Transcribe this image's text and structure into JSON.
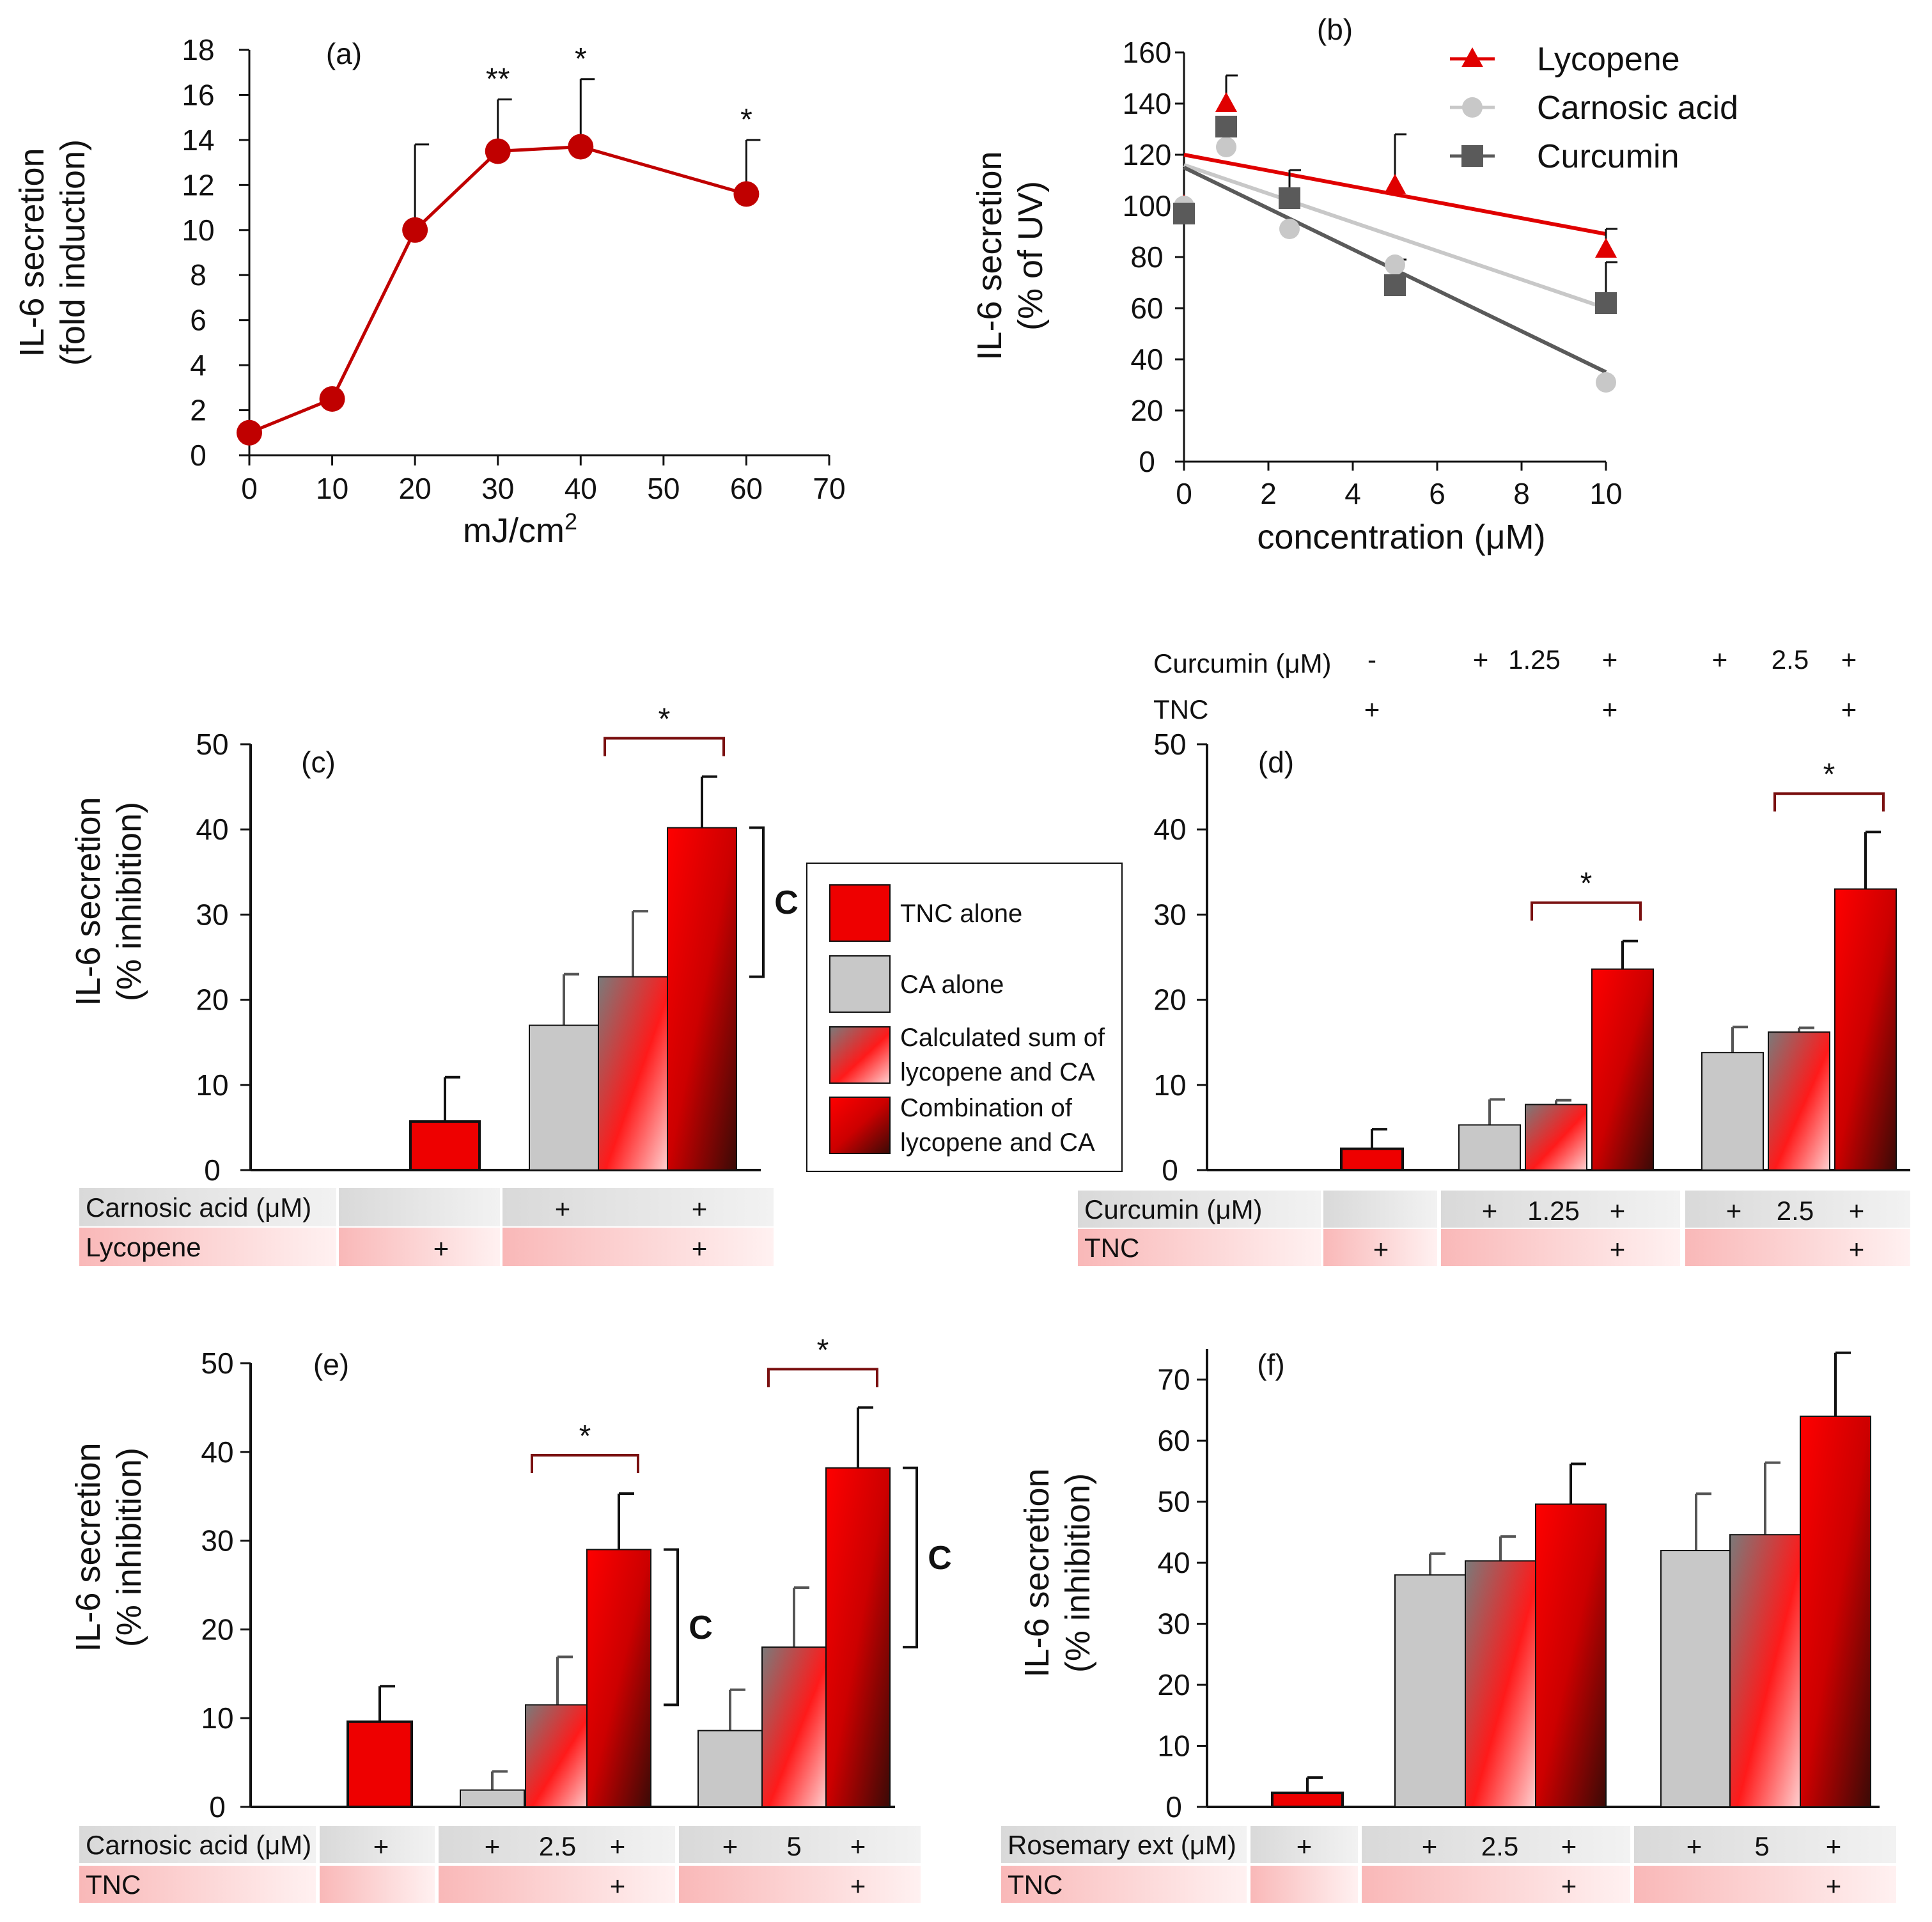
{
  "chart_data": [
    {
      "id": "a",
      "type": "line",
      "panel_label": "(a)",
      "xlabel": "mJ/cm",
      "xlabel_sup": "2",
      "ylabel_line1": "IL-6 secretion",
      "ylabel_line2": "(fold induction)",
      "xlim": [
        0,
        70
      ],
      "ylim": [
        0,
        18
      ],
      "xticks": [
        0,
        10,
        20,
        30,
        40,
        50,
        60,
        70
      ],
      "yticks": [
        0,
        2,
        4,
        6,
        8,
        10,
        12,
        14,
        16,
        18
      ],
      "color": "#c00000",
      "x": [
        0,
        10,
        20,
        30,
        40,
        60
      ],
      "y": [
        1,
        2.5,
        10,
        13.5,
        13.7,
        11.6
      ],
      "err": [
        0,
        0,
        3.8,
        2.3,
        3.0,
        2.4
      ],
      "annotations": [
        "",
        "",
        "",
        "**",
        "*",
        "*"
      ]
    },
    {
      "id": "b",
      "type": "scatter",
      "panel_label": "(b)",
      "xlabel": "concentration (μM)",
      "ylabel_line1": "IL-6 secretion",
      "ylabel_line2": "(% of UV)",
      "xlim": [
        0,
        10
      ],
      "ylim": [
        0,
        160
      ],
      "xticks": [
        0,
        2,
        4,
        6,
        8,
        10
      ],
      "yticks": [
        0,
        20,
        40,
        60,
        80,
        100,
        120,
        140,
        160
      ],
      "series": [
        {
          "name": "Lycopene",
          "marker": "triangle",
          "color": "#e00000",
          "x": [
            0,
            1,
            2.5,
            5,
            10
          ],
          "y": [
            100,
            140,
            102,
            108,
            83
          ],
          "err": [
            0,
            11,
            0,
            20,
            8
          ],
          "fit": [
            [
              0,
              120
            ],
            [
              10,
              89
            ]
          ]
        },
        {
          "name": "Carnosic acid",
          "marker": "circle",
          "color": "#c8c8c8",
          "x": [
            0,
            1,
            2.5,
            5,
            10
          ],
          "y": [
            100,
            123,
            91,
            77,
            31
          ],
          "err": [
            0,
            0,
            0,
            0,
            0
          ],
          "fit": [
            [
              0,
              116
            ],
            [
              10,
              60
            ]
          ]
        },
        {
          "name": "Curcumin",
          "marker": "square",
          "color": "#5a5a5a",
          "x": [
            0,
            1,
            2.5,
            5,
            10
          ],
          "y": [
            97,
            131,
            103,
            69,
            62
          ],
          "err": [
            0,
            0,
            11,
            10,
            16
          ],
          "fit": [
            [
              0,
              115
            ],
            [
              10,
              35
            ]
          ]
        }
      ]
    },
    {
      "id": "c",
      "type": "bar",
      "panel_label": "(c)",
      "ylabel_line1": "IL-6 secretion",
      "ylabel_line2": "(% inhibition)",
      "ylim": [
        0,
        50
      ],
      "yticks": [
        0,
        10,
        20,
        30,
        40,
        50
      ],
      "bars": [
        {
          "kind": "tnc",
          "value": 5.7,
          "err": 5.2
        },
        {
          "kind": "ca",
          "value": 17,
          "err": 6
        },
        {
          "kind": "sum",
          "value": 22.7,
          "err": 7.7
        },
        {
          "kind": "combo",
          "value": 40.2,
          "err": 6
        }
      ],
      "significance": [
        {
          "from": 2,
          "to": 3,
          "label": "*"
        }
      ],
      "bracket_c": [
        {
          "bar": 3,
          "label": "C"
        }
      ],
      "table": {
        "row1_label": "Carnosic acid (μM)",
        "row1": [
          "",
          "+",
          "+"
        ],
        "row2_label": "Lycopene",
        "row2": [
          "+",
          "",
          "+"
        ]
      }
    },
    {
      "id": "d",
      "type": "bar",
      "panel_label": "(d)",
      "ylim": [
        0,
        50
      ],
      "yticks": [
        0,
        10,
        20,
        30,
        40,
        50
      ],
      "bars": [
        {
          "kind": "tnc",
          "value": 2.5,
          "err": 2.3
        },
        {
          "kind": "ca",
          "value": 5.3,
          "err": 3
        },
        {
          "kind": "sum",
          "value": 7.7,
          "err": 0.5
        },
        {
          "kind": "combo",
          "value": 23.6,
          "err": 3.3
        },
        {
          "kind": "ca",
          "value": 13.8,
          "err": 3
        },
        {
          "kind": "sum",
          "value": 16.2,
          "err": 0.5
        },
        {
          "kind": "combo",
          "value": 33,
          "err": 6.7
        }
      ],
      "significance": [
        {
          "from": 2,
          "to": 3,
          "label": "*"
        },
        {
          "from": 5,
          "to": 6,
          "label": "*"
        }
      ],
      "header": {
        "row1_label": "Curcumin (μM)",
        "row1_signs": [
          "-",
          "+",
          "1.25",
          "+",
          "+",
          "2.5",
          "+"
        ],
        "row2_label": "TNC",
        "row2_signs": [
          "+",
          "+",
          "+"
        ]
      },
      "table": {
        "row1_label": "Curcumin (μM)",
        "row1": [
          "",
          "+",
          "1.25",
          "+",
          "+",
          "2.5",
          "+"
        ],
        "row2_label": "TNC",
        "row2": [
          "+",
          "+",
          "+"
        ]
      }
    },
    {
      "id": "e",
      "type": "bar",
      "panel_label": "(e)",
      "ylabel_line1": "IL-6 secretion",
      "ylabel_line2": "(% inhibition)",
      "ylim": [
        0,
        50
      ],
      "yticks": [
        0,
        10,
        20,
        30,
        40,
        50
      ],
      "bars": [
        {
          "kind": "tnc",
          "value": 9.6,
          "err": 4
        },
        {
          "kind": "ca",
          "value": 1.9,
          "err": 2.1
        },
        {
          "kind": "sum",
          "value": 11.5,
          "err": 5.4
        },
        {
          "kind": "combo",
          "value": 29,
          "err": 6.3
        },
        {
          "kind": "ca",
          "value": 8.6,
          "err": 4.6
        },
        {
          "kind": "sum",
          "value": 18,
          "err": 6.7
        },
        {
          "kind": "combo",
          "value": 38.2,
          "err": 6.8
        }
      ],
      "significance": [
        {
          "from": 2,
          "to": 3,
          "label": "*"
        },
        {
          "from": 5,
          "to": 6,
          "label": "*"
        }
      ],
      "bracket_c": [
        {
          "bar": 3,
          "label": "C"
        },
        {
          "bar": 6,
          "label": "C"
        }
      ],
      "table": {
        "row1_label": "Carnosic acid (μM)",
        "row1": [
          "+",
          "+",
          "2.5",
          "+",
          "+",
          "5",
          "+"
        ],
        "row2_label": "TNC",
        "row2": [
          "+",
          "+"
        ]
      }
    },
    {
      "id": "f",
      "type": "bar",
      "panel_label": "(f)",
      "ylabel_line1": "IL-6 secretion",
      "ylabel_line2": "(% inhibition)",
      "ylim": [
        0,
        75
      ],
      "yticks": [
        0,
        10,
        20,
        30,
        40,
        50,
        60,
        70
      ],
      "bars": [
        {
          "kind": "tnc",
          "value": 2.3,
          "err": 2.5
        },
        {
          "kind": "ca",
          "value": 38,
          "err": 3.5
        },
        {
          "kind": "sum",
          "value": 40.3,
          "err": 4
        },
        {
          "kind": "combo",
          "value": 49.6,
          "err": 6.6
        },
        {
          "kind": "ca",
          "value": 42,
          "err": 9.3
        },
        {
          "kind": "sum",
          "value": 44.6,
          "err": 11.8
        },
        {
          "kind": "combo",
          "value": 64,
          "err": 10.4
        }
      ],
      "table": {
        "row1_label": "Rosemary ext (μM)",
        "row1": [
          "+",
          "+",
          "2.5",
          "+",
          "+",
          "5",
          "+"
        ],
        "row2_label": "TNC",
        "row2": [
          "+",
          "+"
        ]
      }
    }
  ],
  "legend": {
    "tnc": "TNC alone",
    "ca": "CA alone",
    "sum_line1": "Calculated sum of",
    "sum_line2": "lycopene and CA",
    "combo_line1": "Combination of",
    "combo_line2": "lycopene and CA"
  },
  "colors": {
    "red": "#ee0000",
    "dark_red": "#4a0c08",
    "grey": "#c8c8c8",
    "dark_grey": "#7a7a7a",
    "bracket": "#7a1010",
    "line_a": "#c00000"
  }
}
